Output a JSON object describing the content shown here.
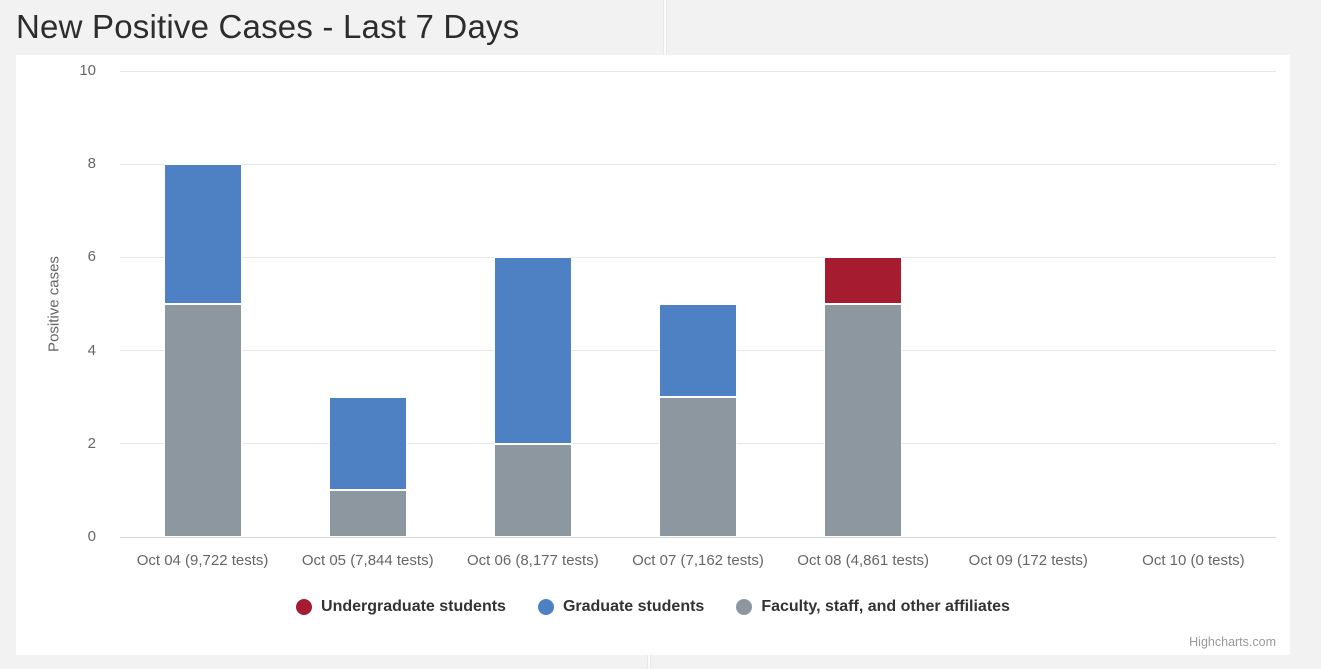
{
  "header": {
    "title": "New Positive Cases - Last 7 Days"
  },
  "colors": {
    "page_background": "#f2f2f2",
    "panel_background": "#ffffff",
    "gridline": "#e7e7e7",
    "axis_line": "#d4d4d4",
    "axis_text": "#666666",
    "legend_text": "#333333"
  },
  "chart_data": {
    "type": "bar",
    "stacked": true,
    "title": "",
    "xlabel": "",
    "ylabel": "Positive cases",
    "ylim": [
      0,
      10
    ],
    "yticks": [
      0,
      2,
      4,
      6,
      8,
      10
    ],
    "grid": true,
    "legend_position": "bottom",
    "categories": [
      "Oct 04 (9,722 tests)",
      "Oct 05 (7,844 tests)",
      "Oct 06 (8,177 tests)",
      "Oct 07 (7,162 tests)",
      "Oct 08 (4,861 tests)",
      "Oct 09 (172 tests)",
      "Oct 10 (0 tests)"
    ],
    "series": [
      {
        "name": "Undergraduate students",
        "color": "#A51C30",
        "values": [
          0,
          0,
          0,
          0,
          1,
          0,
          0
        ]
      },
      {
        "name": "Graduate students",
        "color": "#4E81C4",
        "values": [
          3,
          2,
          4,
          2,
          0,
          0,
          0
        ]
      },
      {
        "name": "Faculty, staff, and other affiliates",
        "color": "#8C97A0",
        "values": [
          5,
          1,
          2,
          3,
          5,
          0,
          0
        ]
      }
    ],
    "stack_bottom_to_top": [
      "Faculty, staff, and other affiliates",
      "Graduate students",
      "Undergraduate students"
    ],
    "totals_by_category": [
      8,
      3,
      6,
      5,
      6,
      0,
      0
    ]
  },
  "credits": {
    "label": "Highcharts.com"
  }
}
